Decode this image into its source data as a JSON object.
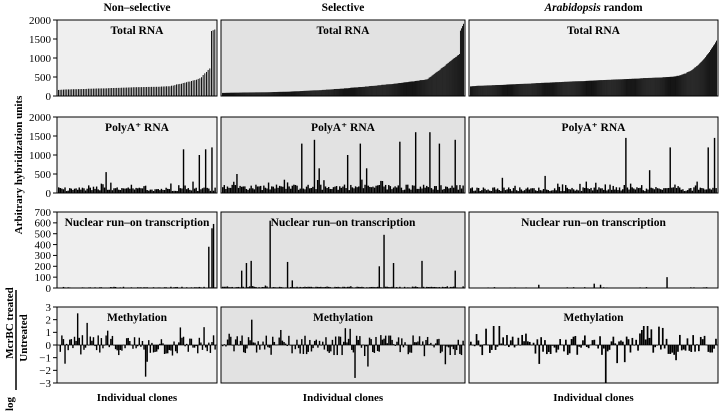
{
  "chart_data": {
    "type": "bar",
    "column_titles": [
      "Non–selective",
      "Selective",
      "Arabidopsis random"
    ],
    "column_title_parts": [
      {
        "italic": "",
        "normal": "Non–selective"
      },
      {
        "italic": "",
        "normal": "Selective"
      },
      {
        "italic": "Arabidopsis",
        "normal": " random"
      }
    ],
    "ylabel": "Arbitrary hybridization units",
    "ylabel_log": {
      "prefix": "log",
      "numerator": "McrBC treated",
      "denominator": "Untreated"
    },
    "xlabel": "Individual clones",
    "rows": [
      {
        "id": "total_rna",
        "panel_label": "Total RNA",
        "ylim": [
          0,
          2000
        ],
        "yticks": [
          "0",
          "500",
          "1000",
          "1500",
          "2000"
        ],
        "ytick_values": [
          0,
          500,
          1000,
          1500,
          2000
        ],
        "panels": [
          {
            "column": "Non–selective",
            "n_clones": 95,
            "min": 150,
            "max": 1750,
            "sorted": true,
            "shape": "ascending, flat ~150–300, spike to ~1700 at far right"
          },
          {
            "column": "Selective",
            "n_clones": 240,
            "min": 80,
            "max": 1900,
            "sorted": true,
            "shape": "ascending, ~100–700 with sharp rise to ~1900 at far right"
          },
          {
            "column": "Arabidopsis random",
            "n_clones": 250,
            "min": 250,
            "max": 1550,
            "sorted": true,
            "shape": "ascending, ~250–700 then rise to ~1500 at far right"
          }
        ]
      },
      {
        "id": "polya_rna",
        "panel_label": "PolyA⁺ RNA",
        "ylim": [
          0,
          2000
        ],
        "yticks": [
          "0",
          "500",
          "1000",
          "1500",
          "2000"
        ],
        "ytick_values": [
          0,
          500,
          1000,
          1500,
          2000
        ],
        "panels": [
          {
            "column": "Non–selective",
            "baseline": 100,
            "peaks": [
              [
                0.3,
                550
              ],
              [
                0.72,
                250
              ],
              [
                0.8,
                1150
              ],
              [
                0.86,
                300
              ],
              [
                0.9,
                1000
              ],
              [
                0.94,
                1150
              ],
              [
                0.98,
                1200
              ]
            ]
          },
          {
            "column": "Selective",
            "baseline": 150,
            "peaks": [
              [
                0.06,
                500
              ],
              [
                0.33,
                1300
              ],
              [
                0.38,
                1400
              ],
              [
                0.4,
                650
              ],
              [
                0.52,
                1000
              ],
              [
                0.57,
                1300
              ],
              [
                0.6,
                650
              ],
              [
                0.74,
                1350
              ],
              [
                0.8,
                1600
              ],
              [
                0.86,
                1600
              ],
              [
                0.9,
                1300
              ],
              [
                0.97,
                1400
              ]
            ]
          },
          {
            "column": "Arabidopsis random",
            "baseline": 100,
            "peaks": [
              [
                0.13,
                400
              ],
              [
                0.3,
                450
              ],
              [
                0.47,
                300
              ],
              [
                0.63,
                1450
              ],
              [
                0.73,
                600
              ],
              [
                0.81,
                1200
              ],
              [
                0.92,
                300
              ],
              [
                0.97,
                1200
              ],
              [
                0.995,
                1450
              ]
            ]
          }
        ]
      },
      {
        "id": "nuclear_runon",
        "panel_label": "Nuclear run–on transcription",
        "ylim": [
          0,
          700
        ],
        "yticks": [
          "0",
          "100",
          "200",
          "300",
          "400",
          "500",
          "600",
          "700"
        ],
        "ytick_values": [
          0,
          100,
          200,
          300,
          400,
          500,
          600,
          700
        ],
        "panels": [
          {
            "column": "Non–selective",
            "baseline": 5,
            "peaks": [
              [
                0.96,
                380
              ],
              [
                0.975,
                550
              ],
              [
                0.99,
                590
              ]
            ]
          },
          {
            "column": "Selective",
            "baseline": 8,
            "peaks": [
              [
                0.08,
                160
              ],
              [
                0.1,
                230
              ],
              [
                0.12,
                250
              ],
              [
                0.2,
                620
              ],
              [
                0.27,
                240
              ],
              [
                0.29,
                70
              ],
              [
                0.65,
                200
              ],
              [
                0.67,
                490
              ],
              [
                0.71,
                230
              ],
              [
                0.83,
                250
              ],
              [
                0.97,
                160
              ]
            ]
          },
          {
            "column": "Arabidopsis random",
            "baseline": 3,
            "peaks": [
              [
                0.28,
                30
              ],
              [
                0.5,
                40
              ],
              [
                0.53,
                30
              ],
              [
                0.8,
                100
              ]
            ]
          }
        ]
      },
      {
        "id": "methylation",
        "panel_label": "Methylation",
        "ylim": [
          -3,
          3
        ],
        "yticks": [
          "−3",
          "−2",
          "−1",
          "0",
          "1",
          "2",
          "3"
        ],
        "ytick_values": [
          -3,
          -2,
          -1,
          0,
          1,
          2,
          3
        ],
        "panels": [
          {
            "column": "Non–selective",
            "n_clones": 100,
            "range": [
              -2.5,
              2.5
            ],
            "shape": "bidirectional noise around 0"
          },
          {
            "column": "Selective",
            "n_clones": 150,
            "range": [
              -2.6,
              2.0
            ],
            "shape": "bidirectional noise around 0"
          },
          {
            "column": "Arabidopsis random",
            "n_clones": 130,
            "range": [
              -3.0,
              1.5
            ],
            "shape": "bidirectional noise around 0, one deep dip to −3"
          }
        ]
      }
    ]
  },
  "colors": {
    "panel_light": "#efefef",
    "panel_dark": "#e2e2e2",
    "bar": "#000000",
    "frame": "#000000"
  }
}
